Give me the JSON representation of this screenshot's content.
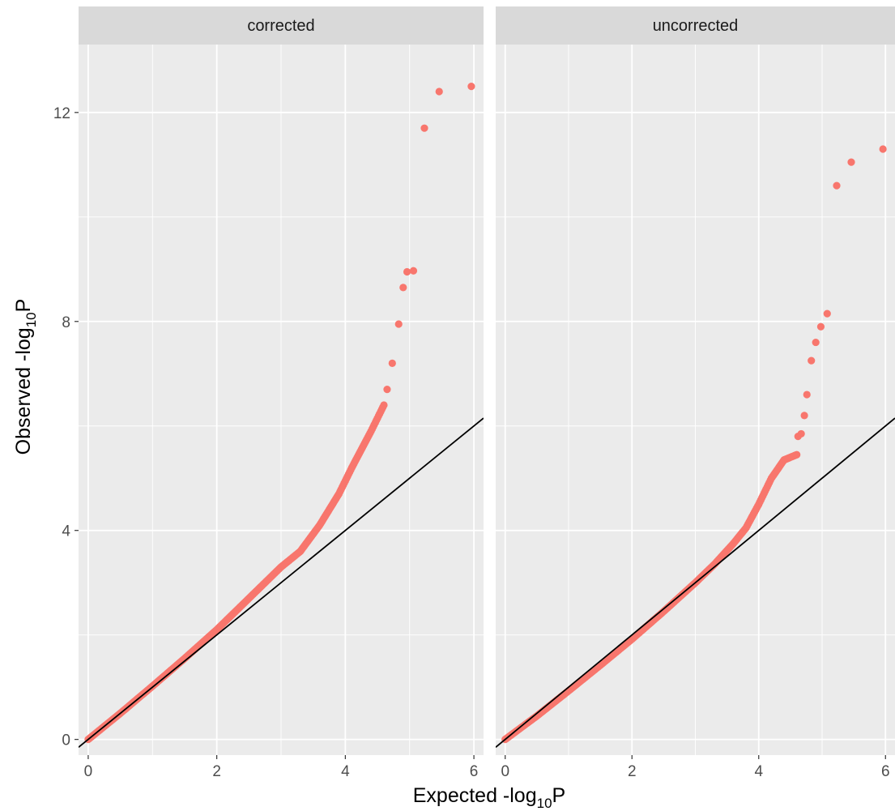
{
  "chart_data": {
    "type": "scatter",
    "layout": "facets-side-by-side",
    "xlabel": {
      "prefix": "Expected -log",
      "subscript": "10",
      "suffix": "P"
    },
    "ylabel": {
      "prefix": "Observed -log",
      "subscript": "10",
      "suffix": "P"
    },
    "xlim": [
      -0.15,
      6.15
    ],
    "ylim": [
      -0.3,
      13.3
    ],
    "x_ticks": [
      0,
      2,
      4,
      6
    ],
    "y_ticks": [
      0,
      4,
      8,
      12
    ],
    "grid": true,
    "point_color": "#F8766D",
    "panel_background": "#EBEBEB",
    "strip_background": "#D9D9D9",
    "reference_line": {
      "slope": 1,
      "intercept": 0,
      "color": "#000000"
    },
    "facets": [
      {
        "name": "corrected",
        "curve": [
          [
            0,
            0
          ],
          [
            0.5,
            0.5
          ],
          [
            1,
            1.02
          ],
          [
            1.5,
            1.55
          ],
          [
            2,
            2.1
          ],
          [
            2.5,
            2.7
          ],
          [
            3,
            3.3
          ],
          [
            3.3,
            3.6
          ],
          [
            3.6,
            4.1
          ],
          [
            3.9,
            4.7
          ],
          [
            4.1,
            5.2
          ],
          [
            4.4,
            5.9
          ],
          [
            4.6,
            6.4
          ]
        ],
        "outliers": [
          [
            4.65,
            6.7
          ],
          [
            4.73,
            7.2
          ],
          [
            4.83,
            7.95
          ],
          [
            4.9,
            8.65
          ],
          [
            4.96,
            8.95
          ],
          [
            5.06,
            8.97
          ],
          [
            5.23,
            11.7
          ],
          [
            5.46,
            12.4
          ],
          [
            5.96,
            12.5
          ]
        ]
      },
      {
        "name": "uncorrected",
        "curve": [
          [
            0,
            0
          ],
          [
            0.5,
            0.45
          ],
          [
            1,
            0.93
          ],
          [
            1.5,
            1.42
          ],
          [
            2,
            1.92
          ],
          [
            2.5,
            2.45
          ],
          [
            3,
            3.0
          ],
          [
            3.3,
            3.35
          ],
          [
            3.6,
            3.75
          ],
          [
            3.8,
            4.05
          ],
          [
            4.0,
            4.5
          ],
          [
            4.2,
            5.0
          ],
          [
            4.4,
            5.35
          ],
          [
            4.6,
            5.45
          ]
        ],
        "outliers": [
          [
            4.62,
            5.8
          ],
          [
            4.67,
            5.85
          ],
          [
            4.72,
            6.2
          ],
          [
            4.76,
            6.6
          ],
          [
            4.83,
            7.25
          ],
          [
            4.9,
            7.6
          ],
          [
            4.98,
            7.9
          ],
          [
            5.08,
            8.15
          ],
          [
            5.23,
            10.6
          ],
          [
            5.46,
            11.05
          ],
          [
            5.96,
            11.3
          ]
        ]
      }
    ]
  }
}
